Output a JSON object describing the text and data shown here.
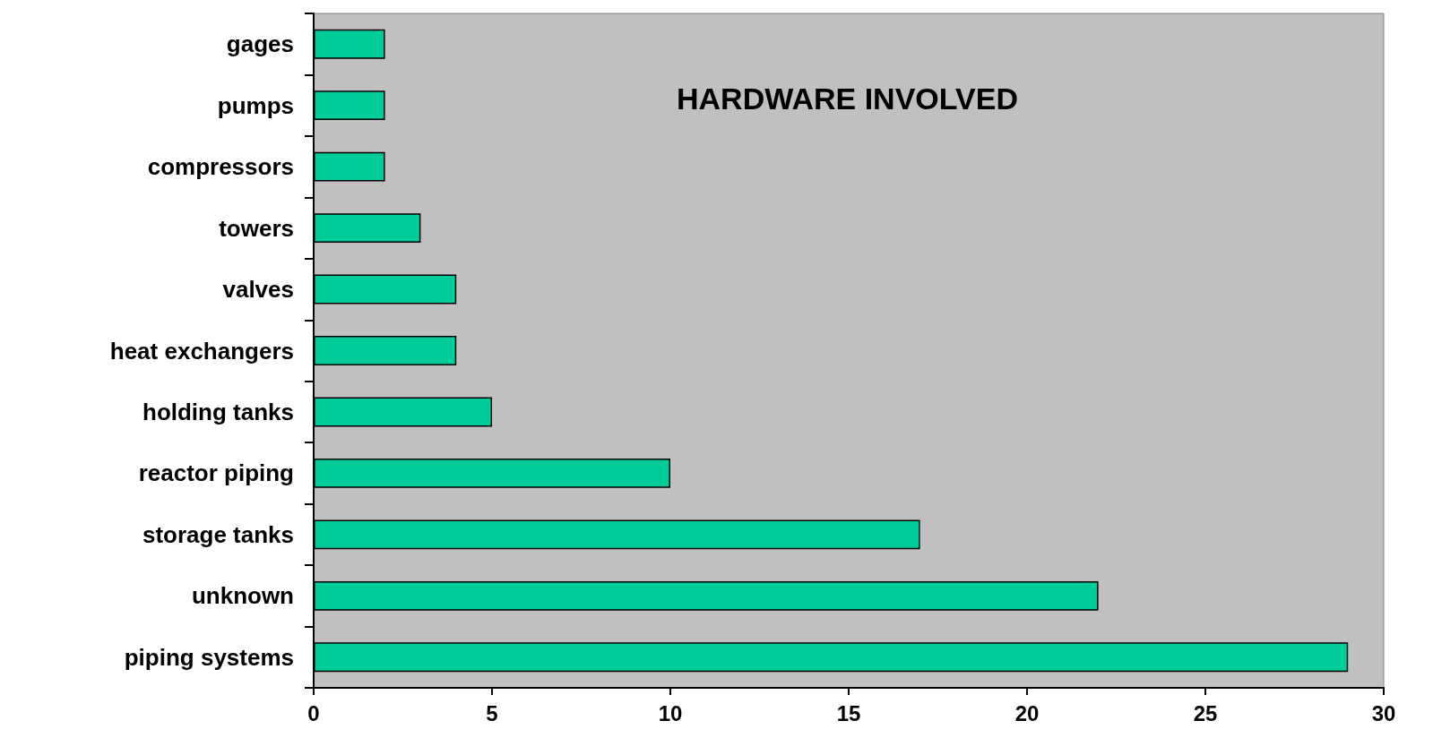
{
  "chart_data": {
    "type": "bar",
    "orientation": "horizontal",
    "title": "HARDWARE INVOLVED",
    "categories": [
      "gages",
      "pumps",
      "compressors",
      "towers",
      "valves",
      "heat exchangers",
      "holding tanks",
      "reactor piping",
      "storage tanks",
      "unknown",
      "piping systems"
    ],
    "values": [
      2,
      2,
      2,
      3,
      4,
      4,
      5,
      10,
      17,
      22,
      29
    ],
    "color": "#00cc99",
    "xlim": [
      0,
      30
    ],
    "xticks": [
      0,
      5,
      10,
      15,
      20,
      25,
      30
    ],
    "grid": false
  }
}
